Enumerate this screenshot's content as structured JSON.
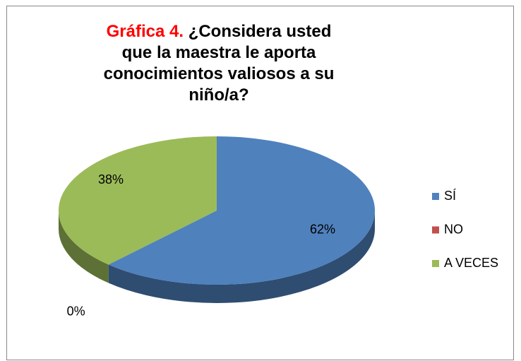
{
  "chart_data": {
    "type": "pie",
    "title_prefix": "Gráfica 4.",
    "title": "¿Considera usted que la maestra  le aporta conocimientos valiosos a su niño/a?",
    "categories": [
      "SÍ",
      "NO",
      "A VECES"
    ],
    "values": [
      62,
      0,
      38
    ],
    "value_labels": [
      "62%",
      "0%",
      "38%"
    ],
    "colors": [
      "#4f81bd",
      "#c0504d",
      "#9bbb59"
    ],
    "legend": "right"
  }
}
